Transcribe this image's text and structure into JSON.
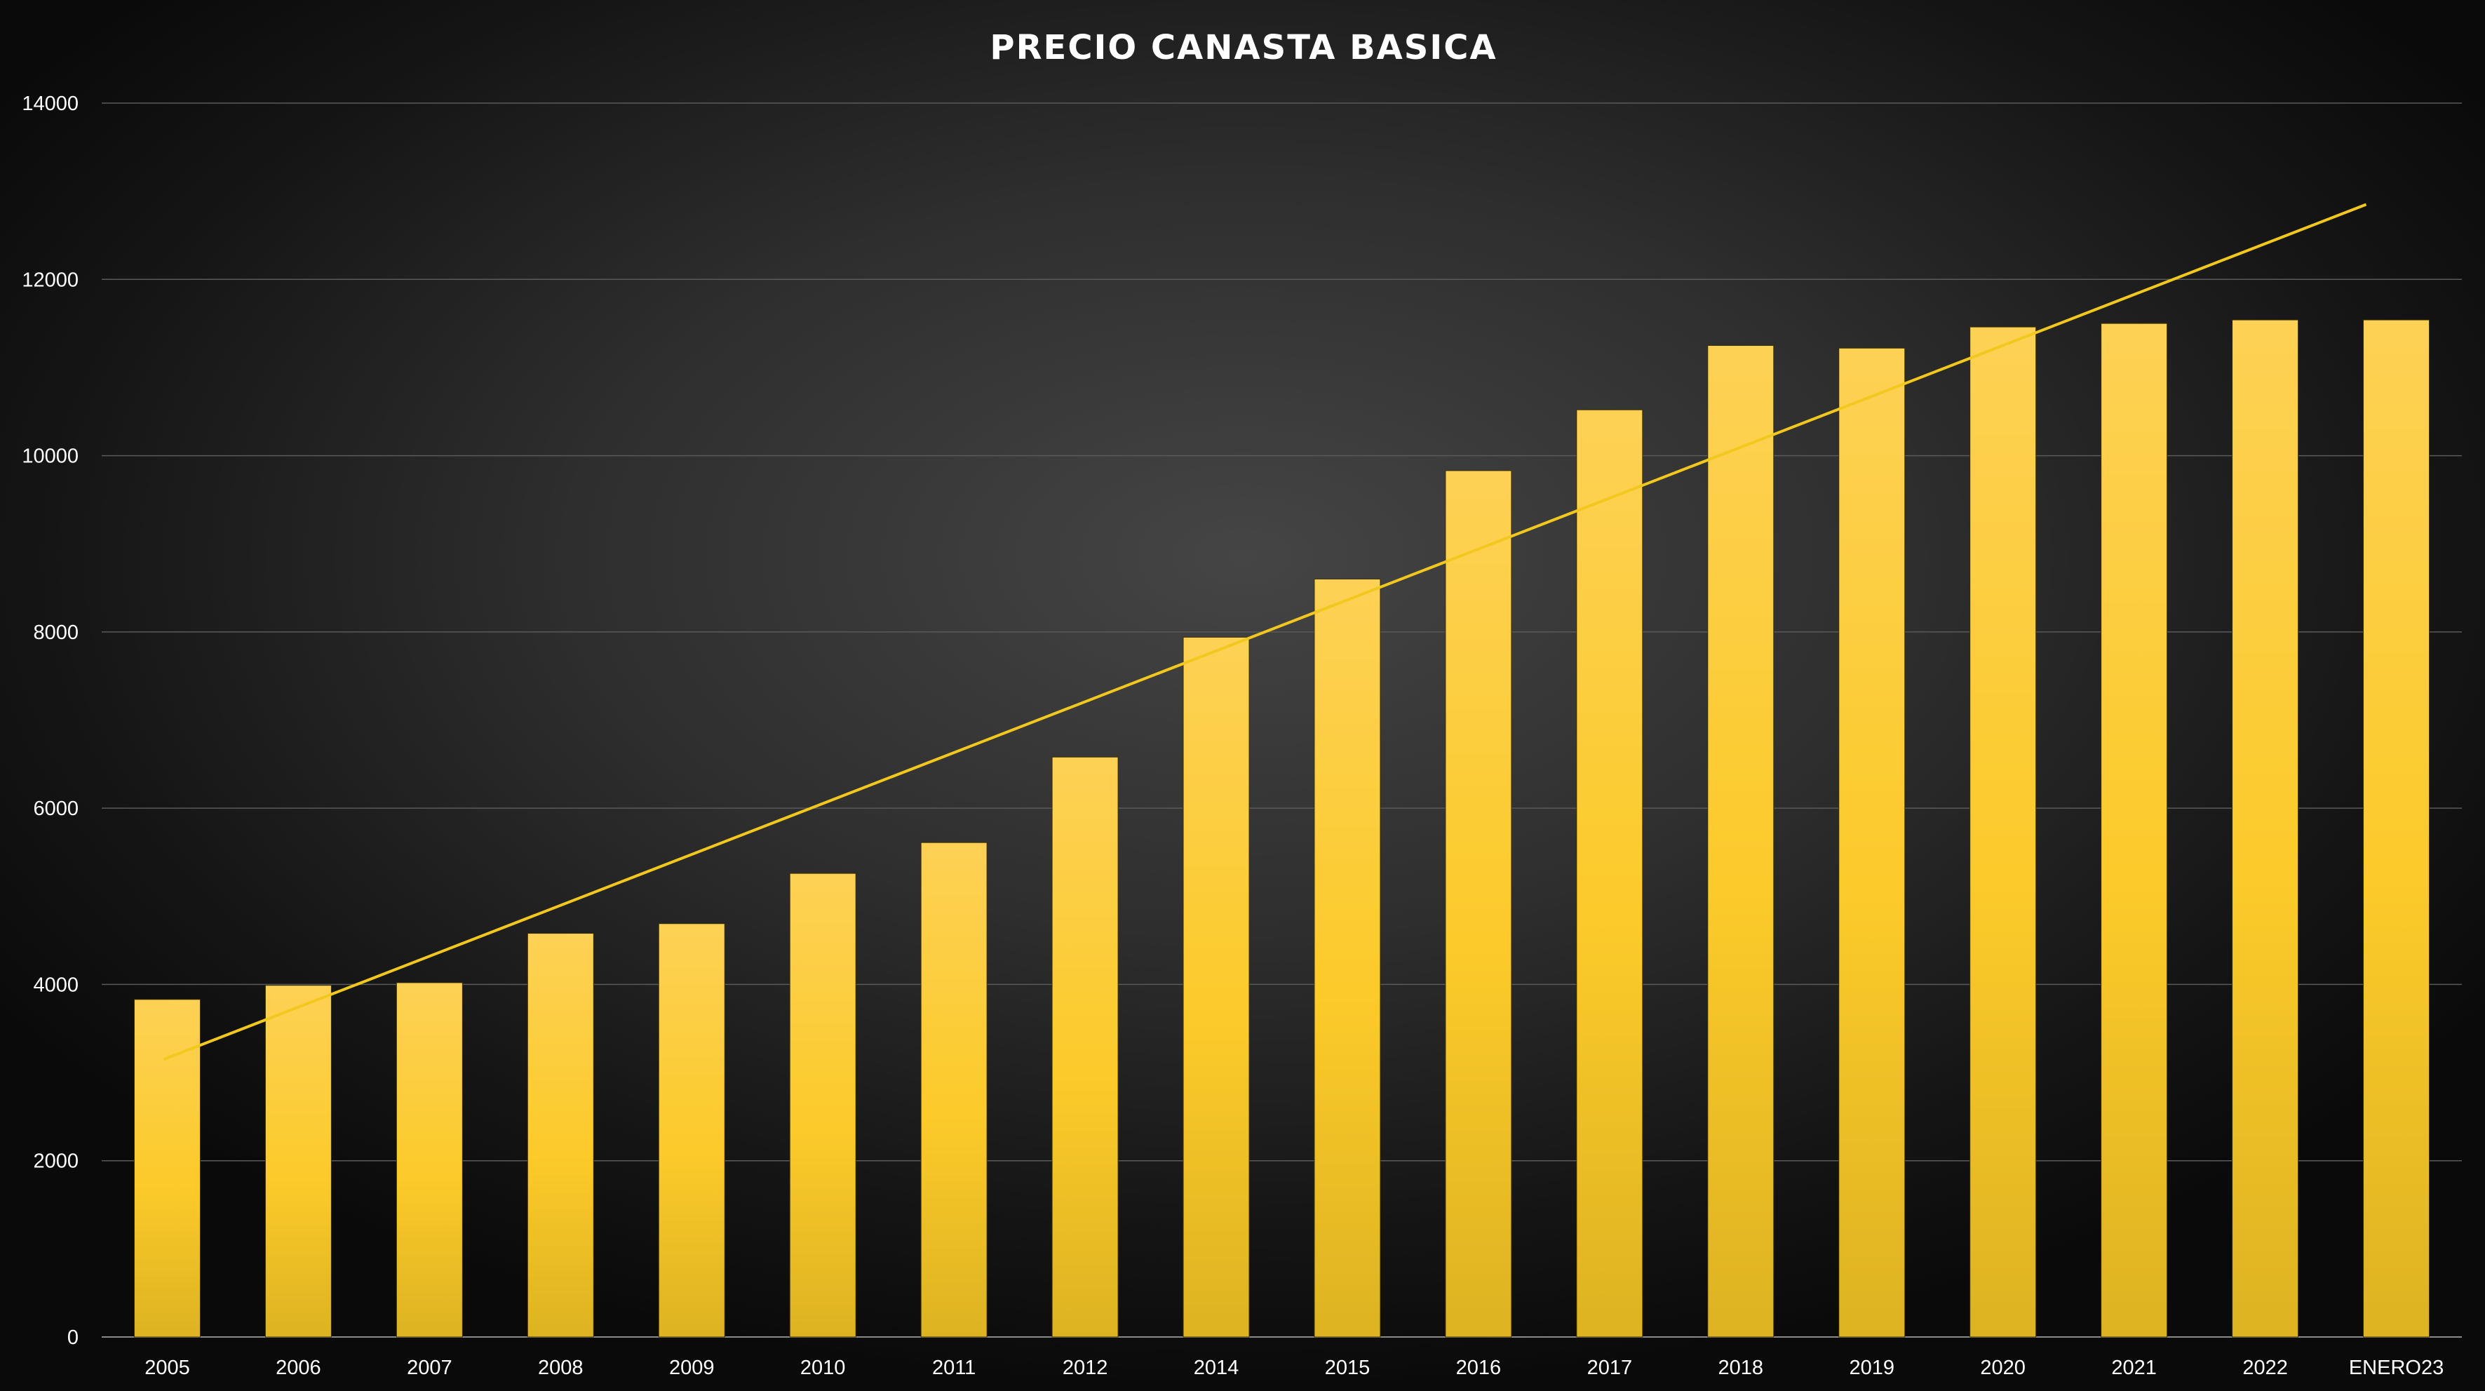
{
  "chart_data": {
    "type": "bar",
    "title": "PRECIO CANASTA BASICA",
    "xlabel": "",
    "ylabel": "",
    "ylim": [
      0,
      14000
    ],
    "yticks": [
      0,
      2000,
      4000,
      6000,
      8000,
      10000,
      12000,
      14000
    ],
    "categories": [
      "2005",
      "2006",
      "2007",
      "2008",
      "2009",
      "2010",
      "2011",
      "2012",
      "2014",
      "2015",
      "2016",
      "2017",
      "2018",
      "2019",
      "2020",
      "2021",
      "2022",
      "ENERO23"
    ],
    "series": [
      {
        "values": [
          3830,
          3990,
          4020,
          4580,
          4690,
          5260,
          5610,
          6580,
          7940,
          8600,
          9830,
          10520,
          11250,
          11220,
          11460,
          11500,
          11540,
          11540
        ],
        "color": "#fccc30"
      }
    ],
    "trendline": {
      "type": "linear",
      "color": "#f2c81e",
      "start_value": 3150,
      "end_value": 12850
    },
    "grid": true,
    "legend": "none",
    "background": "#2e2e2e"
  }
}
